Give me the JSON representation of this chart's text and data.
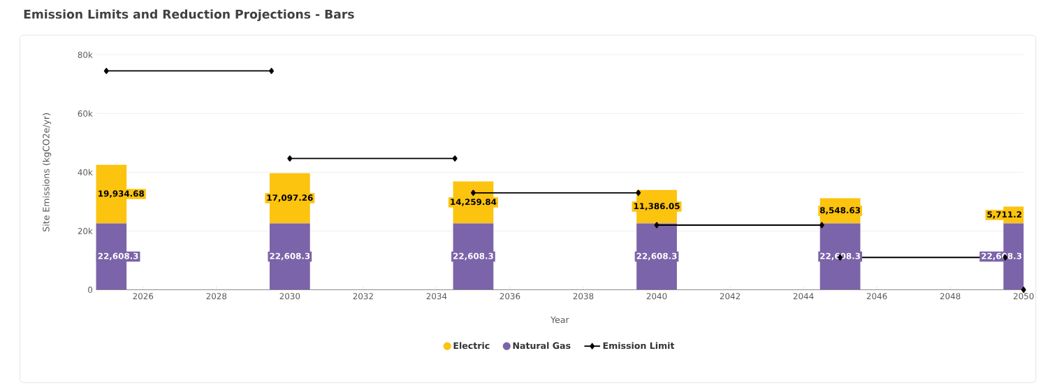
{
  "chart_data": {
    "type": "bar",
    "title": "Emission Limits and Reduction Projections - Bars",
    "xlabel": "Year",
    "ylabel": "Site Emissions (kgCO2e/yr)",
    "x": [
      2025,
      2030,
      2035,
      2040,
      2045,
      2050
    ],
    "stacked": true,
    "series": [
      {
        "name": "Natural Gas",
        "color": "#7b64a9",
        "values": [
          22608.3,
          22608.3,
          22608.3,
          22608.3,
          22608.3,
          22608.3
        ],
        "value_labels": [
          "22,608.3",
          "22,608.3",
          "22,608.3",
          "22,608.3",
          "22,608.3",
          "22,608.3"
        ]
      },
      {
        "name": "Electric",
        "color": "#fcc30f",
        "values": [
          19934.68,
          17097.26,
          14259.84,
          11386.05,
          8548.63,
          5711.2
        ],
        "value_labels": [
          "19,934.68",
          "17,097.26",
          "14,259.84",
          "11,386.05",
          "8,548.63",
          "5,711.2"
        ]
      },
      {
        "name": "Emission Limit",
        "type": "line",
        "color": "#000000",
        "x": [
          2025,
          2029.5,
          null,
          2030,
          2034.5,
          null,
          2035,
          2039.5,
          null,
          2040,
          2044.5,
          null,
          2045,
          2049.5,
          null,
          2050
        ],
        "values": [
          74500,
          74500,
          null,
          44700,
          44700,
          null,
          33000,
          33000,
          null,
          22000,
          22000,
          null,
          11000,
          11000,
          null,
          0
        ]
      }
    ],
    "marker": "diamond",
    "xlim": [
      2024.72,
      2050
    ],
    "ylim": [
      0,
      80000
    ],
    "xticks": [
      2026,
      2028,
      2030,
      2032,
      2034,
      2036,
      2038,
      2040,
      2042,
      2044,
      2046,
      2048,
      2050
    ],
    "yticks": [
      {
        "value": 0,
        "label": "0"
      },
      {
        "value": 20000,
        "label": "20k"
      },
      {
        "value": 40000,
        "label": "40k"
      },
      {
        "value": 60000,
        "label": "60k"
      },
      {
        "value": 80000,
        "label": "80k"
      }
    ],
    "grid": "y",
    "legend": "bottom"
  }
}
